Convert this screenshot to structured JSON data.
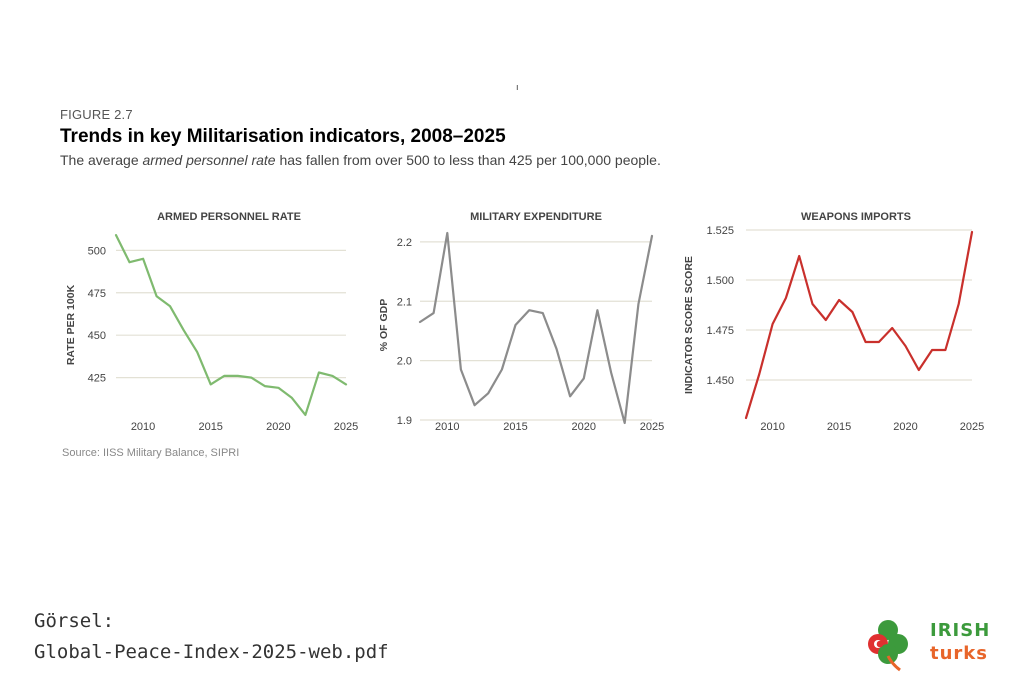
{
  "figure": {
    "label": "FIGURE 2.7",
    "title": "Trends in key Militarisation indicators, 2008–2025",
    "subtitle_pre": "The average ",
    "subtitle_em": "armed personnel rate",
    "subtitle_post": " has fallen from over 500 to less than 425 per 100,000 people.",
    "stray_mark": "ı",
    "source": "Source: IISS Military Balance, SIPRI"
  },
  "caption": {
    "line1": "Görsel:",
    "line2": "Global-Peace-Index-2025-web.pdf"
  },
  "logo": {
    "text_top": "IRISH",
    "text_bottom": "turks",
    "colors": {
      "green": "#3c9a3c",
      "orange": "#e8652a",
      "red": "#e03030"
    }
  },
  "chart_data": [
    {
      "type": "line",
      "title": "ARMED PERSONNEL RATE",
      "xlabel": "",
      "ylabel": "RATE PER 100K",
      "color": "#7fba6f",
      "xlim": [
        2008,
        2025
      ],
      "ylim": [
        400,
        512
      ],
      "yticks": [
        425,
        450,
        475,
        500
      ],
      "xticks": [
        2010,
        2015,
        2020,
        2025
      ],
      "grid": true,
      "x": [
        2008,
        2009,
        2010,
        2011,
        2012,
        2013,
        2014,
        2015,
        2016,
        2017,
        2018,
        2019,
        2020,
        2021,
        2022,
        2023,
        2024,
        2025
      ],
      "y": [
        509,
        493,
        495,
        473,
        467,
        453,
        440,
        421,
        426,
        426,
        425,
        420,
        419,
        413,
        403,
        428,
        426,
        421
      ]
    },
    {
      "type": "line",
      "title": "MILITARY EXPENDITURE",
      "xlabel": "",
      "ylabel": "% OF GDP",
      "color": "#8c8c8c",
      "xlim": [
        2008,
        2025
      ],
      "ylim": [
        1.9,
        2.22
      ],
      "yticks": [
        1.9,
        2.0,
        2.1,
        2.2
      ],
      "xticks": [
        2010,
        2015,
        2020,
        2025
      ],
      "grid": true,
      "x": [
        2008,
        2009,
        2010,
        2011,
        2012,
        2013,
        2014,
        2015,
        2016,
        2017,
        2018,
        2019,
        2020,
        2021,
        2022,
        2023,
        2024,
        2025
      ],
      "y": [
        2.065,
        2.08,
        2.215,
        1.985,
        1.925,
        1.945,
        1.985,
        2.06,
        2.085,
        2.08,
        2.02,
        1.94,
        1.97,
        2.085,
        1.98,
        1.895,
        2.095,
        2.21
      ]
    },
    {
      "type": "line",
      "title": "WEAPONS IMPORTS",
      "xlabel": "",
      "ylabel": "INDICATOR SCORE SCORE",
      "color": "#c9302c",
      "xlim": [
        2008,
        2025
      ],
      "ylim": [
        1.43,
        1.525
      ],
      "yticks": [
        1.45,
        1.475,
        1.5,
        1.525
      ],
      "xticks": [
        2010,
        2015,
        2020,
        2025
      ],
      "grid": true,
      "x": [
        2008,
        2009,
        2010,
        2011,
        2012,
        2013,
        2014,
        2015,
        2016,
        2017,
        2018,
        2019,
        2020,
        2021,
        2022,
        2023,
        2024,
        2025
      ],
      "y": [
        1.431,
        1.453,
        1.478,
        1.491,
        1.512,
        1.488,
        1.48,
        1.49,
        1.484,
        1.469,
        1.469,
        1.476,
        1.467,
        1.455,
        1.465,
        1.465,
        1.488,
        1.524
      ]
    }
  ]
}
